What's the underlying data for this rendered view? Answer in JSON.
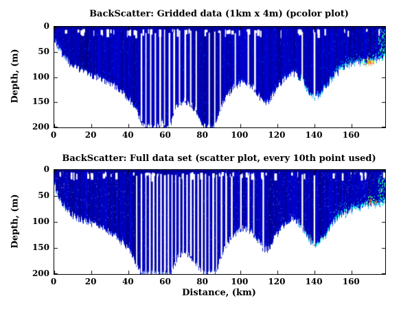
{
  "figure": {
    "background": "#ffffff"
  },
  "chart_data": [
    {
      "type": "pcolor",
      "title": "BackScatter: Gridded data (1km x 4m) (pcolor plot)",
      "xlabel": "",
      "ylabel": "Depth, (m)",
      "xlim": [
        0,
        178
      ],
      "ylim": [
        0,
        200
      ],
      "y_inverted": true,
      "grid": false,
      "xticks": [
        0,
        20,
        40,
        60,
        80,
        100,
        120,
        140,
        160
      ],
      "yticks": [
        0,
        50,
        100,
        150,
        200
      ],
      "bottom_profile": {
        "x_start": 0,
        "x_step": 2,
        "depth": [
          22,
          40,
          55,
          65,
          72,
          78,
          82,
          86,
          90,
          94,
          97,
          100,
          103,
          106,
          110,
          114,
          118,
          124,
          130,
          137,
          144,
          152,
          166,
          184,
          198,
          200,
          200,
          200,
          198,
          192,
          200,
          200,
          172,
          156,
          150,
          148,
          152,
          158,
          166,
          184,
          198,
          200,
          200,
          198,
          176,
          156,
          142,
          131,
          122,
          116,
          112,
          110,
          112,
          118,
          128,
          138,
          148,
          152,
          144,
          132,
          120,
          110,
          102,
          96,
          92,
          96,
          104,
          114,
          126,
          136,
          143,
          138,
          130,
          120,
          110,
          100,
          92,
          86,
          82,
          78,
          76,
          74,
          72,
          70,
          68,
          67,
          66,
          64,
          62,
          60
        ]
      },
      "gap_columns_km": [
        46.5,
        49,
        51.5,
        54,
        56.5,
        59,
        61.5,
        64,
        67,
        70,
        73,
        76,
        83,
        86,
        89,
        97,
        104,
        107.5,
        133,
        139.5
      ],
      "warm_spot": {
        "x": 169,
        "depth": 70,
        "count": 45
      },
      "colors": {
        "deep": [
          "#000090",
          "#0000b4",
          "#0000d2"
        ],
        "mid": "#0040ff",
        "cyan": [
          "#00cfff",
          "#00ffd0",
          "#30b0ff"
        ],
        "warm": [
          "#ff3000",
          "#ff8000",
          "#ffff00",
          "#60ff40"
        ]
      },
      "seed": 12345
    },
    {
      "type": "scatter",
      "title": "BackScatter: Full data set (scatter plot, every 10th point used)",
      "xlabel": "Distance, (km)",
      "ylabel": "Depth, (m)",
      "xlim": [
        0,
        178
      ],
      "ylim": [
        0,
        200
      ],
      "y_inverted": true,
      "grid": false,
      "xticks": [
        0,
        20,
        40,
        60,
        80,
        100,
        120,
        140,
        160
      ],
      "yticks": [
        0,
        50,
        100,
        150,
        200
      ],
      "bottom_profile": {
        "x_start": 0,
        "x_step": 2,
        "depth": [
          30,
          50,
          65,
          74,
          82,
          88,
          92,
          95,
          98,
          100,
          103,
          106,
          109,
          112,
          116,
          120,
          125,
          131,
          138,
          146,
          155,
          168,
          184,
          196,
          200,
          200,
          200,
          200,
          200,
          200,
          200,
          200,
          188,
          170,
          160,
          158,
          162,
          170,
          180,
          192,
          200,
          200,
          200,
          200,
          184,
          162,
          148,
          136,
          126,
          118,
          114,
          112,
          114,
          120,
          130,
          140,
          150,
          154,
          146,
          134,
          122,
          112,
          104,
          98,
          94,
          98,
          106,
          116,
          128,
          138,
          145,
          140,
          132,
          122,
          112,
          102,
          94,
          88,
          84,
          80,
          78,
          76,
          74,
          72,
          70,
          69,
          68,
          66,
          64,
          62
        ]
      },
      "gap_columns_km": [
        44,
        46.5,
        49,
        51,
        53,
        55,
        57,
        59,
        61,
        63,
        65,
        67,
        69,
        71,
        73,
        75,
        77,
        79,
        81,
        83,
        85,
        87,
        89.5,
        92,
        95,
        100,
        104,
        107,
        112,
        133,
        139.5
      ],
      "warm_spot": {
        "x": 170,
        "depth": 58,
        "count": 25
      },
      "colors": {
        "deep": [
          "#000090",
          "#0000b4",
          "#0000d2"
        ],
        "mid": "#0040ff",
        "cyan": [
          "#00cfff",
          "#00ffd0",
          "#30b0ff"
        ],
        "warm": [
          "#ff3000",
          "#ff8000",
          "#ffff00",
          "#60ff40"
        ]
      },
      "seed": 67890
    }
  ]
}
